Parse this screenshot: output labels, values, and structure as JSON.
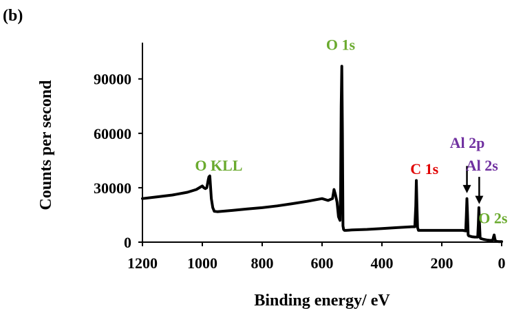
{
  "panel_label": "(b)",
  "chart_data": {
    "type": "line",
    "title": "",
    "xlabel": "Binding energy/ eV",
    "ylabel": "Counts per second",
    "xlim": [
      1200,
      0
    ],
    "ylim": [
      0,
      110000
    ],
    "x_reversed": true,
    "grid": false,
    "x_ticks": [
      1200,
      1000,
      800,
      600,
      400,
      200,
      0
    ],
    "x_tick_labels": [
      "1200",
      "1000",
      "800",
      "600",
      "400",
      "200",
      "0"
    ],
    "y_ticks": [
      0,
      30000,
      60000,
      90000
    ],
    "y_tick_labels": [
      "0",
      "30000",
      "60000",
      "90000"
    ],
    "series": [
      {
        "color": "#000000",
        "x": [
          1200,
          1150,
          1100,
          1050,
          1020,
          1005,
          1000,
          995,
          990,
          985,
          980,
          978,
          975,
          970,
          965,
          960,
          950,
          900,
          850,
          800,
          750,
          700,
          650,
          600,
          580,
          565,
          560,
          555,
          550,
          545,
          540,
          538,
          536,
          534,
          532,
          530,
          528,
          525,
          520,
          500,
          450,
          400,
          350,
          300,
          290,
          287,
          285,
          283,
          281,
          278,
          275,
          250,
          200,
          150,
          130,
          120,
          118,
          116,
          114,
          112,
          110,
          100,
          90,
          80,
          78,
          76,
          74,
          72,
          70,
          60,
          50,
          40,
          30,
          27,
          25,
          23,
          20,
          10,
          0
        ],
        "y": [
          24000,
          25000,
          26000,
          27500,
          29000,
          30500,
          31000,
          30000,
          29500,
          30000,
          34500,
          36000,
          36500,
          24000,
          19000,
          17000,
          16800,
          17500,
          18300,
          19000,
          20000,
          21200,
          22500,
          24000,
          23000,
          24000,
          29000,
          26000,
          22000,
          14000,
          12000,
          30000,
          75000,
          97000,
          60000,
          9000,
          7000,
          6500,
          6500,
          6700,
          7000,
          7500,
          8000,
          8500,
          8500,
          20000,
          34000,
          20000,
          8000,
          6500,
          6500,
          6500,
          6500,
          6500,
          6500,
          6200,
          15000,
          24000,
          15000,
          4000,
          3500,
          3000,
          2800,
          2800,
          10000,
          19000,
          10000,
          2500,
          2000,
          1500,
          1200,
          1000,
          1000,
          3000,
          4000,
          2000,
          500,
          300,
          300
        ]
      }
    ],
    "annotations": [
      {
        "text": "O 1s",
        "x": 538,
        "y": 106000,
        "color": "#6aaa2e"
      },
      {
        "text": "O KLL",
        "x": 945,
        "y": 39500,
        "color": "#6aaa2e"
      },
      {
        "text": "C 1s",
        "x": 258,
        "y": 37500,
        "color": "#e00000"
      },
      {
        "text": "Al 2p",
        "x": 115,
        "y": 52000,
        "color": "#7030a0"
      },
      {
        "text": "Al 2s",
        "x": 66,
        "y": 39500,
        "color": "#7030a0"
      },
      {
        "text": "O 2s",
        "x": 29,
        "y": 10500,
        "color": "#6aaa2e"
      }
    ],
    "arrows": [
      {
        "from": [
          116,
          42000
        ],
        "to": [
          116,
          27000
        ]
      },
      {
        "from": [
          75,
          36000
        ],
        "to": [
          75,
          21000
        ]
      }
    ]
  }
}
